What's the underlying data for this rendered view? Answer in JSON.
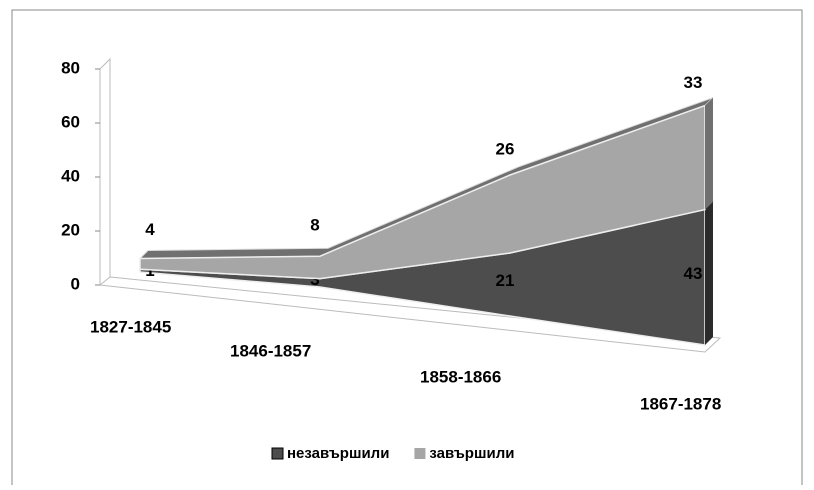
{
  "chart_data": {
    "type": "area3d",
    "categories": [
      "1827-1845",
      "1846-1857",
      "1858-1866",
      "1867-1878"
    ],
    "series": [
      {
        "name": "незавършили",
        "color": "#4d4d4d",
        "values": [
          1,
          3,
          21,
          43
        ]
      },
      {
        "name": "завършили",
        "color": "#a6a6a6",
        "values": [
          4,
          8,
          26,
          33
        ]
      }
    ],
    "stacked": true,
    "ylim": [
      0,
      80
    ],
    "yticks": [
      0,
      20,
      40,
      60,
      80
    ],
    "legend": "bottom"
  }
}
